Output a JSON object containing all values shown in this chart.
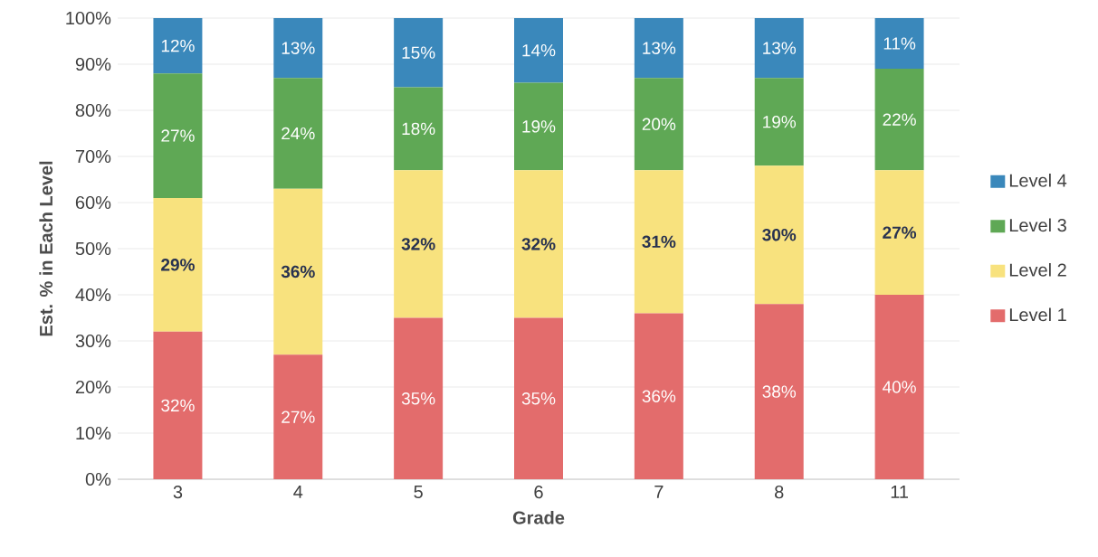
{
  "chart_data": {
    "type": "bar",
    "stacked": true,
    "xlabel": "Grade",
    "ylabel": "Est. % in Each Level",
    "categories": [
      "3",
      "4",
      "5",
      "6",
      "7",
      "8",
      "11"
    ],
    "series": [
      {
        "name": "Level 1",
        "color": "#e36c6c",
        "values": [
          32,
          27,
          35,
          35,
          36,
          38,
          40
        ],
        "value_labels": [
          "32%",
          "27%",
          "35%",
          "35%",
          "36%",
          "38%",
          "40%"
        ]
      },
      {
        "name": "Level 2",
        "color": "#f8e27e",
        "values": [
          29,
          36,
          32,
          32,
          31,
          30,
          27
        ],
        "value_labels": [
          "29%",
          "36%",
          "32%",
          "32%",
          "31%",
          "30%",
          "27%"
        ]
      },
      {
        "name": "Level 3",
        "color": "#5fa855",
        "values": [
          27,
          24,
          18,
          19,
          20,
          19,
          22
        ],
        "value_labels": [
          "27%",
          "24%",
          "18%",
          "19%",
          "20%",
          "19%",
          "22%"
        ]
      },
      {
        "name": "Level 4",
        "color": "#3a88bb",
        "values": [
          12,
          13,
          15,
          14,
          13,
          13,
          11
        ],
        "value_labels": [
          "12%",
          "13%",
          "15%",
          "14%",
          "13%",
          "13%",
          "11%"
        ]
      }
    ],
    "ylim": [
      0,
      100
    ],
    "yticks": [
      {
        "value": 0,
        "label": "0%"
      },
      {
        "value": 10,
        "label": "10%"
      },
      {
        "value": 20,
        "label": "20%"
      },
      {
        "value": 30,
        "label": "30%"
      },
      {
        "value": 40,
        "label": "40%"
      },
      {
        "value": 50,
        "label": "50%"
      },
      {
        "value": 60,
        "label": "60%"
      },
      {
        "value": 70,
        "label": "70%"
      },
      {
        "value": 80,
        "label": "80%"
      },
      {
        "value": 90,
        "label": "90%"
      },
      {
        "value": 100,
        "label": "100%"
      }
    ],
    "grid": "y",
    "legend": "right"
  }
}
